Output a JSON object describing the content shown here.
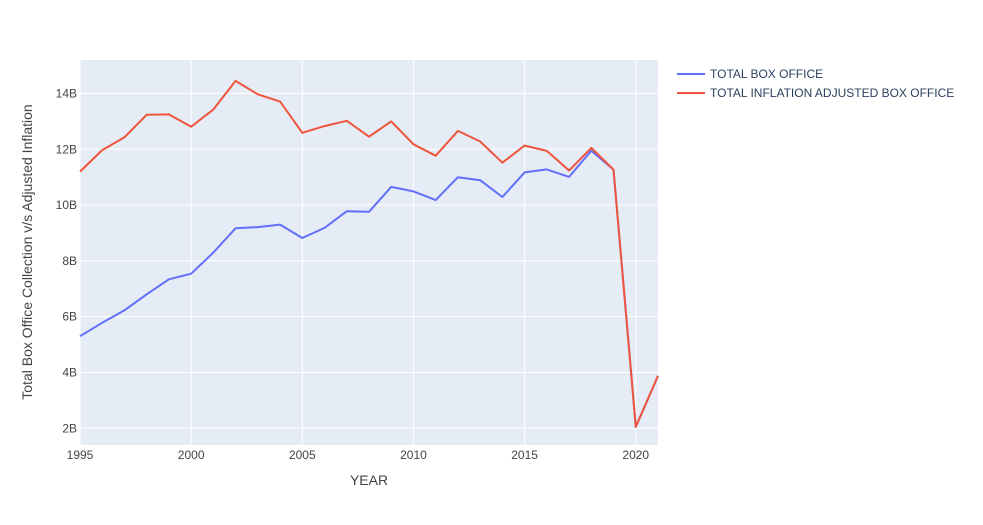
{
  "chart_data": {
    "type": "line",
    "title": "",
    "xlabel": "YEAR",
    "ylabel": "Total Box Office Collection v/s Adjusted Inflation",
    "xlim": [
      1995,
      2021
    ],
    "ylim": [
      1400000000,
      15200000000
    ],
    "x_ticks": [
      1995,
      2000,
      2005,
      2010,
      2015,
      2020
    ],
    "x_tick_labels": [
      "1995",
      "2000",
      "2005",
      "2010",
      "2015",
      "2020"
    ],
    "y_ticks": [
      2000000000,
      4000000000,
      6000000000,
      8000000000,
      10000000000,
      12000000000,
      14000000000
    ],
    "y_tick_labels": [
      "2B",
      "4B",
      "6B",
      "8B",
      "10B",
      "12B",
      "14B"
    ],
    "grid": true,
    "legend_position": "top-right outside",
    "background_color": "#e5ecf6",
    "x": [
      1995,
      1996,
      1997,
      1998,
      1999,
      2000,
      2001,
      2002,
      2003,
      2004,
      2005,
      2006,
      2007,
      2008,
      2009,
      2010,
      2011,
      2012,
      2013,
      2014,
      2015,
      2016,
      2017,
      2018,
      2019,
      2020,
      2021
    ],
    "series": [
      {
        "name": "TOTAL BOX OFFICE",
        "color": "#636efa",
        "values": [
          5300000000,
          5780000000,
          6230000000,
          6800000000,
          7340000000,
          7540000000,
          8300000000,
          9170000000,
          9210000000,
          9300000000,
          8820000000,
          9180000000,
          9780000000,
          9760000000,
          10650000000,
          10490000000,
          10180000000,
          11000000000,
          10890000000,
          10290000000,
          11170000000,
          11280000000,
          11010000000,
          11950000000,
          11270000000,
          2050000000,
          3880000000
        ]
      },
      {
        "name": "TOTAL INFLATION ADJUSTED BOX OFFICE",
        "color": "#ef553b",
        "values": [
          11200000000,
          11970000000,
          12430000000,
          13240000000,
          13250000000,
          12810000000,
          13430000000,
          14450000000,
          13970000000,
          13710000000,
          12590000000,
          12830000000,
          13020000000,
          12450000000,
          13000000000,
          12180000000,
          11770000000,
          12660000000,
          12280000000,
          11520000000,
          12130000000,
          11940000000,
          11240000000,
          12050000000,
          11270000000,
          2050000000,
          3880000000
        ]
      }
    ]
  }
}
